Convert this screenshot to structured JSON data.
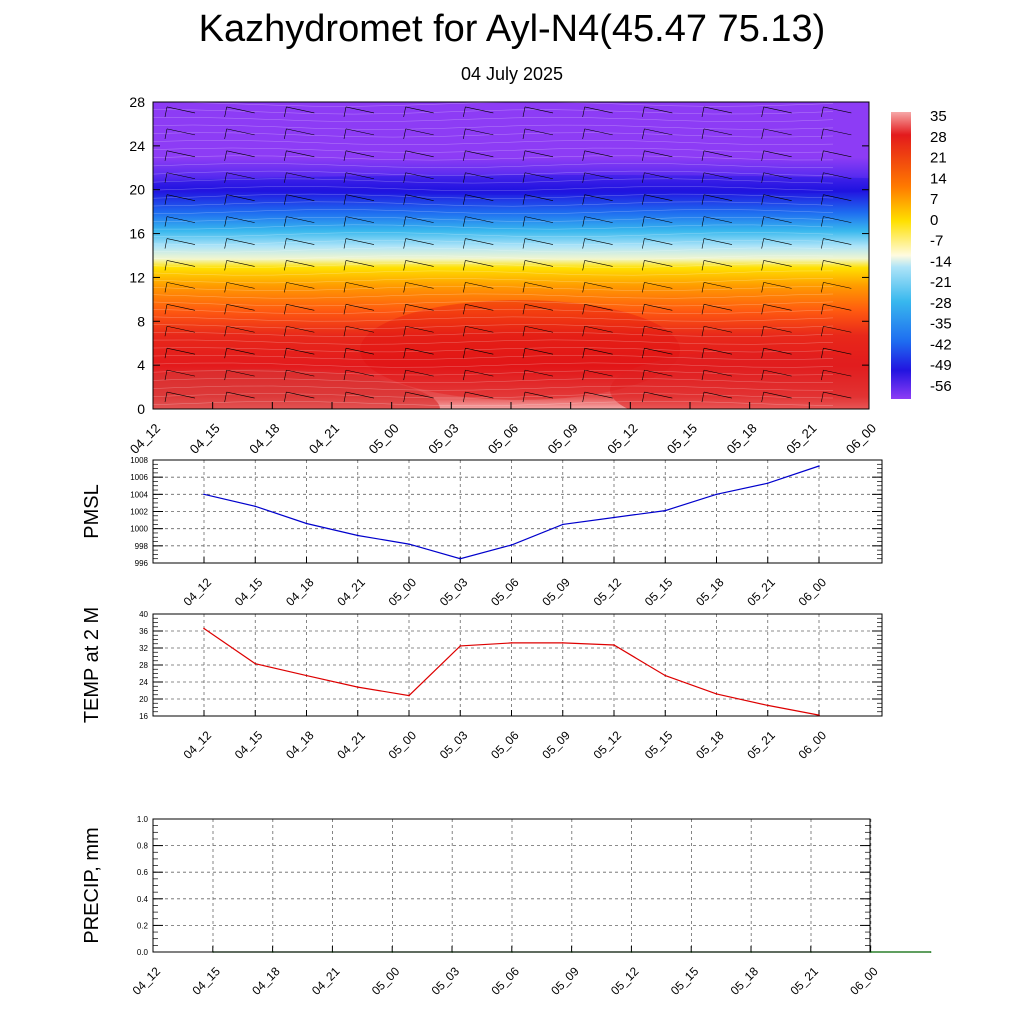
{
  "title": "Kazhydromet for Ayl-N4(45.47 75.13)",
  "subtitle": "04 July 2025",
  "chart_data": [
    {
      "type": "heatmap",
      "title": "",
      "x_tick_labels": [
        "04_12",
        "04_15",
        "04_18",
        "04_21",
        "05_00",
        "05_03",
        "05_06",
        "05_09",
        "05_12",
        "05_15",
        "05_18",
        "05_21",
        "06_00"
      ],
      "ylim": [
        0,
        28
      ],
      "y_ticks": [
        0,
        4,
        8,
        12,
        16,
        20,
        24,
        28
      ],
      "colorbar_labels": [
        "35",
        "28",
        "21",
        "14",
        "7",
        "0",
        "-7",
        "-14",
        "-21",
        "-28",
        "-35",
        "-42",
        "-49",
        "-56"
      ],
      "colors": {
        "warm_max": "#f6a8a8",
        "red": "#e31a1c",
        "orange": "#ff8c00",
        "yellow": "#ffe000",
        "light_blue": "#aee4f8",
        "blue": "#1e6cf0",
        "deep_blue": "#2a14e6",
        "violet": "#8d3cf5"
      },
      "temperature_profile": [
        {
          "height": 0,
          "value": 33
        },
        {
          "height": 2,
          "value": 28
        },
        {
          "height": 4,
          "value": 24
        },
        {
          "height": 6,
          "value": 21
        },
        {
          "height": 8,
          "value": 16
        },
        {
          "height": 10,
          "value": 7
        },
        {
          "height": 12,
          "value": -2
        },
        {
          "height": 13.5,
          "value": -12
        },
        {
          "height": 16,
          "value": -24
        },
        {
          "height": 18,
          "value": -35
        },
        {
          "height": 20,
          "value": -48
        },
        {
          "height": 21,
          "value": -56
        },
        {
          "height": 22,
          "value": -62
        },
        {
          "height": 28,
          "value": -65
        }
      ],
      "wind_barbs": "yes"
    },
    {
      "type": "line",
      "ylabel": "PMSL",
      "x_tick_labels": [
        "04_12",
        "04_15",
        "04_18",
        "04_21",
        "05_00",
        "05_03",
        "05_06",
        "05_09",
        "05_12",
        "05_15",
        "05_18",
        "05_21",
        "06_00"
      ],
      "ylim": [
        996,
        1008
      ],
      "y_ticks": [
        996,
        998,
        1000,
        1002,
        1004,
        1006,
        1008
      ],
      "grid": true,
      "series": [
        {
          "values": [
            1004.0,
            1002.6,
            1000.6,
            999.2,
            998.2,
            996.5,
            998.1,
            1000.5,
            1001.3,
            1002.1,
            1004.0,
            1005.3,
            1007.3
          ],
          "color": "#0000cc"
        }
      ]
    },
    {
      "type": "line",
      "ylabel": "TEMP at 2 M",
      "x_tick_labels": [
        "04_12",
        "04_15",
        "04_18",
        "04_21",
        "05_00",
        "05_03",
        "05_06",
        "05_09",
        "05_12",
        "05_15",
        "05_18",
        "05_21",
        "06_00"
      ],
      "ylim": [
        16,
        40
      ],
      "y_ticks": [
        16,
        20,
        24,
        28,
        32,
        36,
        40
      ],
      "grid": true,
      "series": [
        {
          "values": [
            36.6,
            28.3,
            25.5,
            22.8,
            20.8,
            32.5,
            33.2,
            33.2,
            32.7,
            25.5,
            21.2,
            18.5,
            16.2
          ],
          "color": "#dd0000"
        }
      ]
    },
    {
      "type": "line",
      "ylabel": "PRECIP, mm",
      "x_tick_labels": [
        "04_12",
        "04_15",
        "04_18",
        "04_21",
        "05_00",
        "05_03",
        "05_06",
        "05_09",
        "05_12",
        "05_15",
        "05_18",
        "05_21",
        "06_00"
      ],
      "ylim": [
        0.0,
        1.0
      ],
      "y_ticks": [
        "0.0",
        "0.2",
        "0.4",
        "0.6",
        "0.8",
        "1.0"
      ],
      "grid": true,
      "series": [
        {
          "values": [
            0,
            0,
            0,
            0,
            0,
            0,
            0,
            0,
            0,
            0,
            0,
            0,
            0
          ],
          "color": "#006600"
        }
      ]
    }
  ]
}
